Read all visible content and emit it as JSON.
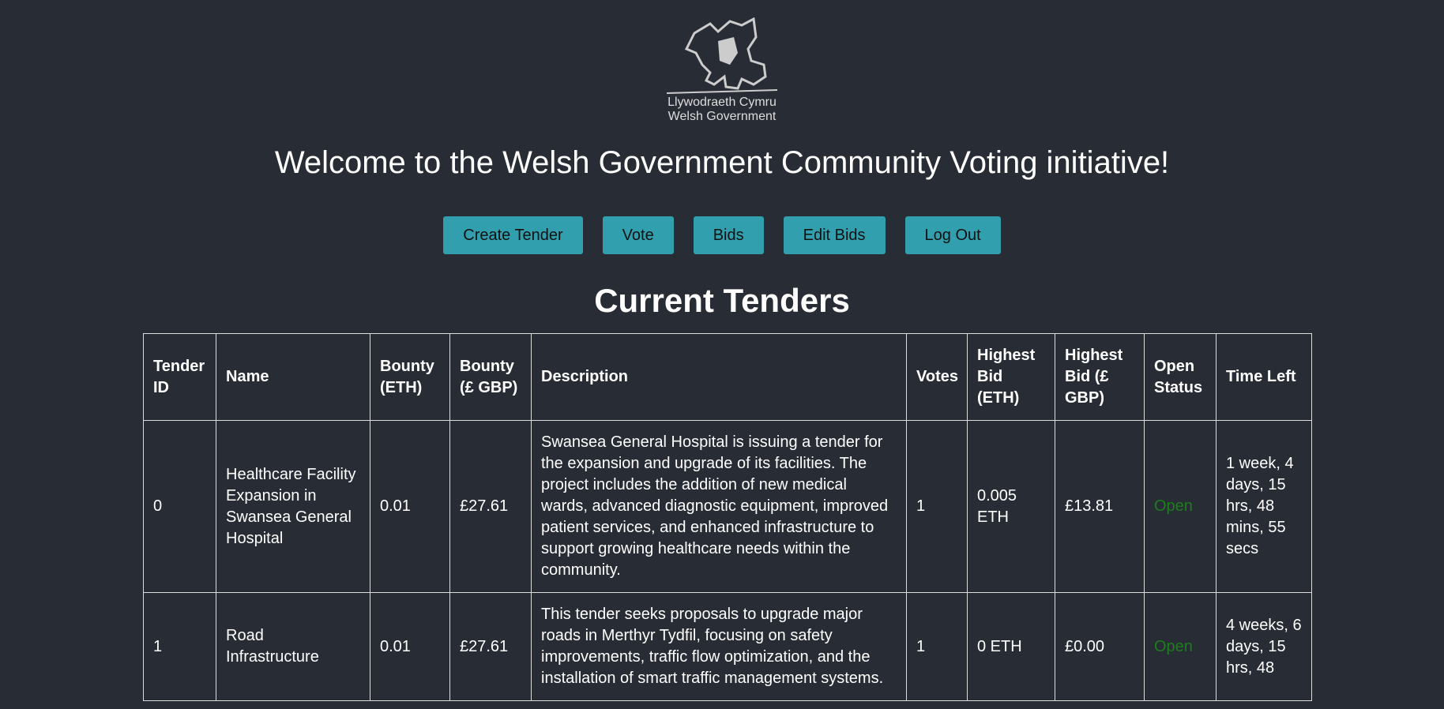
{
  "logo": {
    "line1": "Llywodraeth Cymru",
    "line2": "Welsh Government"
  },
  "title": "Welcome to the Welsh Government Community Voting initiative!",
  "nav": [
    "Create Tender",
    "Vote",
    "Bids",
    "Edit Bids",
    "Log Out"
  ],
  "section_title": "Current Tenders",
  "table": {
    "headers": [
      "Tender ID",
      "Name",
      "Bounty (ETH)",
      "Bounty (£ GBP)",
      "Description",
      "Votes",
      "Highest Bid (ETH)",
      "Highest Bid (£ GBP)",
      "Open Status",
      "Time Left"
    ],
    "rows": [
      [
        "0",
        "Healthcare Facility Expansion in Swansea General Hospital",
        "0.01",
        "£27.61",
        "Swansea General Hospital is issuing a tender for the expansion and upgrade of its facilities. The project includes the addition of new medical wards, advanced diagnostic equipment, improved patient services, and enhanced infrastructure to support growing healthcare needs within the community.",
        "1",
        "0.005 ETH",
        "£13.81",
        "Open",
        "1 week, 4 days, 15 hrs, 48 mins, 55 secs"
      ],
      [
        "1",
        "Road Infrastructure",
        "0.01",
        "£27.61",
        "This tender seeks proposals to upgrade major roads in Merthyr Tydfil, focusing on safety improvements, traffic flow optimization, and the installation of smart traffic management systems.",
        "1",
        "0 ETH",
        "£0.00",
        "Open",
        "4 weeks, 6 days, 15 hrs, 48"
      ]
    ]
  }
}
